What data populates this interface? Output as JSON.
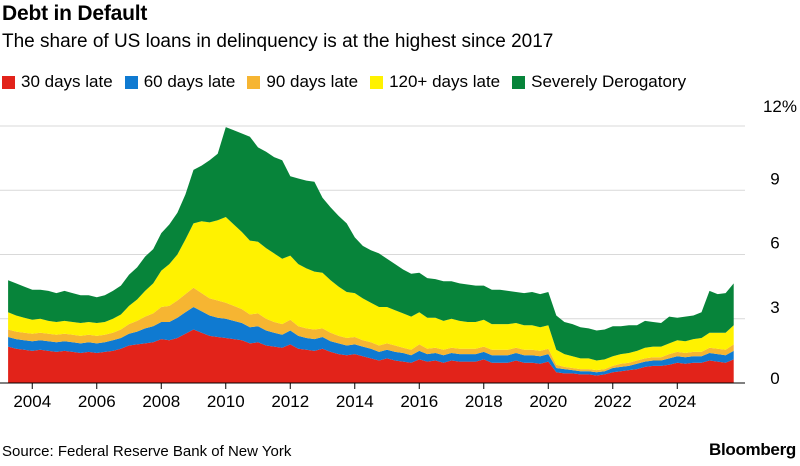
{
  "header": {
    "title": "Debt in Default",
    "subtitle": "The share of US loans in delinquency is at the highest since 2017"
  },
  "footer": {
    "source": "Source: Federal Reserve Bank of New York",
    "brand": "Bloomberg"
  },
  "chart_data": {
    "type": "area",
    "stacked": true,
    "y_unit_label": "12%",
    "ylim": [
      0,
      12
    ],
    "y_ticks": [
      0,
      3,
      6,
      9,
      12
    ],
    "y_tick_labels": [
      "0",
      "3",
      "6",
      "9"
    ],
    "y_axis_side": "right",
    "x_tick_labels": [
      "2004",
      "2006",
      "2008",
      "2010",
      "2012",
      "2014",
      "2016",
      "2018",
      "2020",
      "2022",
      "2024"
    ],
    "x_tick_values": [
      2004,
      2006,
      2008,
      2010,
      2012,
      2014,
      2016,
      2018,
      2020,
      2022,
      2024
    ],
    "xlim": [
      2003.0,
      2026.1
    ],
    "grid": "horizontal",
    "legend_position": "top",
    "x": [
      2003.25,
      2003.5,
      2003.75,
      2004.0,
      2004.25,
      2004.5,
      2004.75,
      2005.0,
      2005.25,
      2005.5,
      2005.75,
      2006.0,
      2006.25,
      2006.5,
      2006.75,
      2007.0,
      2007.25,
      2007.5,
      2007.75,
      2008.0,
      2008.25,
      2008.5,
      2008.75,
      2009.0,
      2009.25,
      2009.5,
      2009.75,
      2010.0,
      2010.25,
      2010.5,
      2010.75,
      2011.0,
      2011.25,
      2011.5,
      2011.75,
      2012.0,
      2012.25,
      2012.5,
      2012.75,
      2013.0,
      2013.25,
      2013.5,
      2013.75,
      2014.0,
      2014.25,
      2014.5,
      2014.75,
      2015.0,
      2015.25,
      2015.5,
      2015.75,
      2016.0,
      2016.25,
      2016.5,
      2016.75,
      2017.0,
      2017.25,
      2017.5,
      2017.75,
      2018.0,
      2018.25,
      2018.5,
      2018.75,
      2019.0,
      2019.25,
      2019.5,
      2019.75,
      2020.0,
      2020.25,
      2020.5,
      2020.75,
      2021.0,
      2021.25,
      2021.5,
      2021.75,
      2022.0,
      2022.25,
      2022.5,
      2022.75,
      2023.0,
      2023.25,
      2023.5,
      2023.75,
      2024.0,
      2024.25,
      2024.5,
      2024.75,
      2025.0,
      2025.25,
      2025.5,
      2025.75
    ],
    "series": [
      {
        "name": "30 days late",
        "color": "#e2231a",
        "values": [
          1.7,
          1.6,
          1.55,
          1.5,
          1.55,
          1.5,
          1.45,
          1.5,
          1.45,
          1.4,
          1.45,
          1.4,
          1.45,
          1.5,
          1.6,
          1.75,
          1.8,
          1.85,
          1.9,
          2.05,
          2.0,
          2.1,
          2.3,
          2.5,
          2.35,
          2.2,
          2.15,
          2.1,
          2.05,
          2.0,
          1.85,
          1.9,
          1.75,
          1.7,
          1.65,
          1.8,
          1.6,
          1.55,
          1.5,
          1.6,
          1.45,
          1.35,
          1.3,
          1.35,
          1.25,
          1.15,
          1.05,
          1.15,
          1.05,
          1.0,
          0.95,
          1.1,
          1.0,
          1.05,
          0.95,
          1.05,
          1.0,
          1.0,
          1.0,
          1.1,
          0.95,
          0.95,
          0.95,
          1.05,
          0.95,
          0.95,
          0.9,
          1.0,
          0.5,
          0.45,
          0.45,
          0.4,
          0.4,
          0.35,
          0.4,
          0.5,
          0.55,
          0.6,
          0.65,
          0.75,
          0.8,
          0.8,
          0.85,
          0.95,
          0.9,
          0.95,
          0.95,
          1.05,
          1.0,
          0.95,
          1.1
        ]
      },
      {
        "name": "60 days late",
        "color": "#0f7ad1",
        "values": [
          0.45,
          0.45,
          0.45,
          0.45,
          0.45,
          0.45,
          0.45,
          0.45,
          0.45,
          0.45,
          0.45,
          0.45,
          0.45,
          0.5,
          0.5,
          0.55,
          0.6,
          0.7,
          0.75,
          0.8,
          0.85,
          0.95,
          1.0,
          1.05,
          1.0,
          0.95,
          0.9,
          0.9,
          0.85,
          0.8,
          0.75,
          0.75,
          0.7,
          0.65,
          0.6,
          0.65,
          0.6,
          0.55,
          0.55,
          0.55,
          0.5,
          0.5,
          0.45,
          0.45,
          0.45,
          0.45,
          0.4,
          0.4,
          0.4,
          0.4,
          0.35,
          0.4,
          0.35,
          0.35,
          0.35,
          0.35,
          0.35,
          0.35,
          0.35,
          0.35,
          0.35,
          0.35,
          0.35,
          0.35,
          0.35,
          0.35,
          0.35,
          0.35,
          0.2,
          0.2,
          0.15,
          0.15,
          0.15,
          0.15,
          0.15,
          0.2,
          0.2,
          0.2,
          0.25,
          0.25,
          0.25,
          0.25,
          0.3,
          0.3,
          0.3,
          0.3,
          0.3,
          0.35,
          0.35,
          0.35,
          0.4
        ]
      },
      {
        "name": "90 days late",
        "color": "#f6b532",
        "values": [
          0.35,
          0.35,
          0.35,
          0.35,
          0.35,
          0.35,
          0.35,
          0.35,
          0.35,
          0.35,
          0.35,
          0.35,
          0.35,
          0.35,
          0.4,
          0.45,
          0.5,
          0.55,
          0.6,
          0.7,
          0.75,
          0.8,
          0.85,
          0.9,
          0.85,
          0.8,
          0.8,
          0.75,
          0.7,
          0.65,
          0.6,
          0.6,
          0.55,
          0.5,
          0.5,
          0.5,
          0.45,
          0.45,
          0.45,
          0.4,
          0.4,
          0.35,
          0.35,
          0.35,
          0.3,
          0.3,
          0.3,
          0.3,
          0.3,
          0.25,
          0.25,
          0.3,
          0.25,
          0.25,
          0.25,
          0.25,
          0.25,
          0.25,
          0.25,
          0.25,
          0.25,
          0.25,
          0.25,
          0.25,
          0.25,
          0.25,
          0.25,
          0.25,
          0.15,
          0.1,
          0.1,
          0.1,
          0.1,
          0.1,
          0.1,
          0.1,
          0.15,
          0.15,
          0.15,
          0.15,
          0.15,
          0.15,
          0.2,
          0.2,
          0.2,
          0.2,
          0.2,
          0.25,
          0.25,
          0.25,
          0.3
        ]
      },
      {
        "name": "120+ days late",
        "color": "#fff200",
        "values": [
          0.8,
          0.75,
          0.7,
          0.65,
          0.65,
          0.6,
          0.6,
          0.6,
          0.6,
          0.6,
          0.6,
          0.6,
          0.6,
          0.65,
          0.7,
          0.85,
          1.0,
          1.2,
          1.4,
          1.7,
          1.95,
          2.15,
          2.55,
          3.0,
          3.35,
          3.55,
          3.75,
          4.0,
          3.8,
          3.6,
          3.45,
          3.35,
          3.3,
          3.2,
          3.05,
          3.0,
          2.9,
          2.8,
          2.7,
          2.6,
          2.45,
          2.3,
          2.15,
          2.05,
          1.95,
          1.85,
          1.8,
          1.7,
          1.65,
          1.6,
          1.55,
          1.5,
          1.45,
          1.4,
          1.35,
          1.35,
          1.3,
          1.25,
          1.25,
          1.25,
          1.2,
          1.2,
          1.2,
          1.15,
          1.15,
          1.15,
          1.1,
          1.1,
          0.7,
          0.6,
          0.55,
          0.5,
          0.5,
          0.45,
          0.45,
          0.45,
          0.45,
          0.45,
          0.45,
          0.5,
          0.5,
          0.5,
          0.5,
          0.55,
          0.55,
          0.6,
          0.65,
          0.7,
          0.75,
          0.8,
          0.9
        ]
      },
      {
        "name": "Severely Derogatory",
        "color": "#07843a",
        "values": [
          1.5,
          1.5,
          1.45,
          1.4,
          1.35,
          1.4,
          1.35,
          1.4,
          1.35,
          1.3,
          1.25,
          1.2,
          1.25,
          1.3,
          1.35,
          1.45,
          1.5,
          1.6,
          1.6,
          1.75,
          1.85,
          1.95,
          2.1,
          2.5,
          2.6,
          2.9,
          3.1,
          4.2,
          4.4,
          4.6,
          4.85,
          4.4,
          4.5,
          4.5,
          4.6,
          3.7,
          4.0,
          4.1,
          4.2,
          3.5,
          3.4,
          3.3,
          3.2,
          2.6,
          2.45,
          2.45,
          2.5,
          2.25,
          2.15,
          2.05,
          2.0,
          1.85,
          1.85,
          1.8,
          1.85,
          1.75,
          1.75,
          1.75,
          1.7,
          1.6,
          1.6,
          1.6,
          1.55,
          1.45,
          1.5,
          1.55,
          1.55,
          1.55,
          1.6,
          1.5,
          1.5,
          1.45,
          1.4,
          1.4,
          1.4,
          1.4,
          1.3,
          1.3,
          1.2,
          1.25,
          1.15,
          1.1,
          1.25,
          1.05,
          1.15,
          1.1,
          1.2,
          1.95,
          1.8,
          1.85,
          1.95
        ]
      }
    ]
  }
}
